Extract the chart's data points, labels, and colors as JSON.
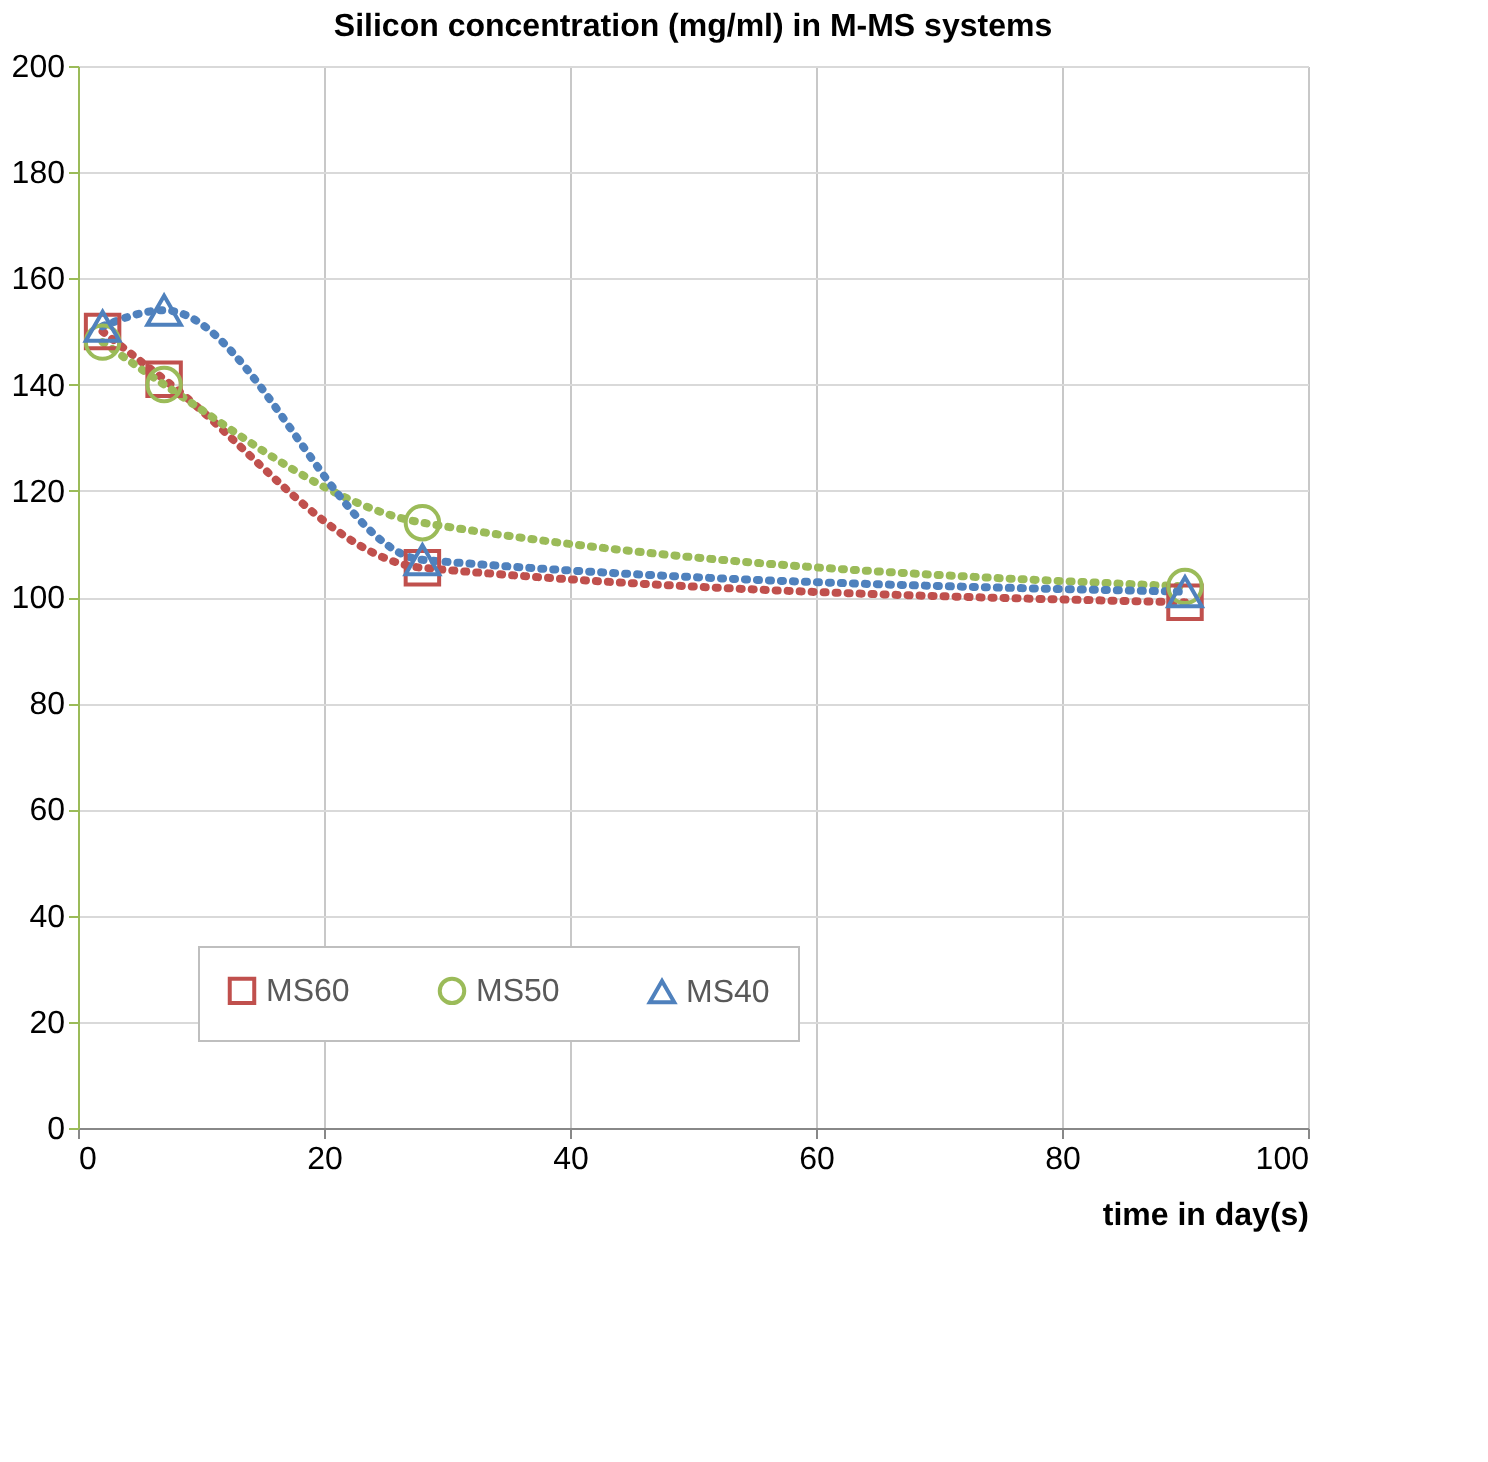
{
  "chart_data": {
    "type": "line",
    "title": "Silicon concentration (mg/ml) in M-MS systems",
    "xlabel": "time in day(s)",
    "x": [
      2,
      7,
      28,
      90
    ],
    "series": [
      {
        "name": "MS60",
        "color": "#c0504d",
        "values": [
          150,
          141,
          105.5,
          99
        ],
        "marker": "square"
      },
      {
        "name": "MS50",
        "color": "#9bbb59",
        "values": [
          148,
          140,
          114,
          102
        ],
        "marker": "circle"
      },
      {
        "name": "MS40",
        "color": "#4f81bd",
        "values": [
          151,
          154,
          107,
          101
        ],
        "marker": "triangle"
      }
    ],
    "xlim": [
      0,
      100
    ],
    "xticks": [
      0,
      20,
      40,
      60,
      80,
      100
    ],
    "ylim": [
      0,
      200
    ],
    "yticks": [
      0,
      20,
      40,
      60,
      80,
      100,
      120,
      140,
      160,
      180,
      200
    ],
    "grid": true,
    "legend": "bottom",
    "line_style": "dotted"
  }
}
